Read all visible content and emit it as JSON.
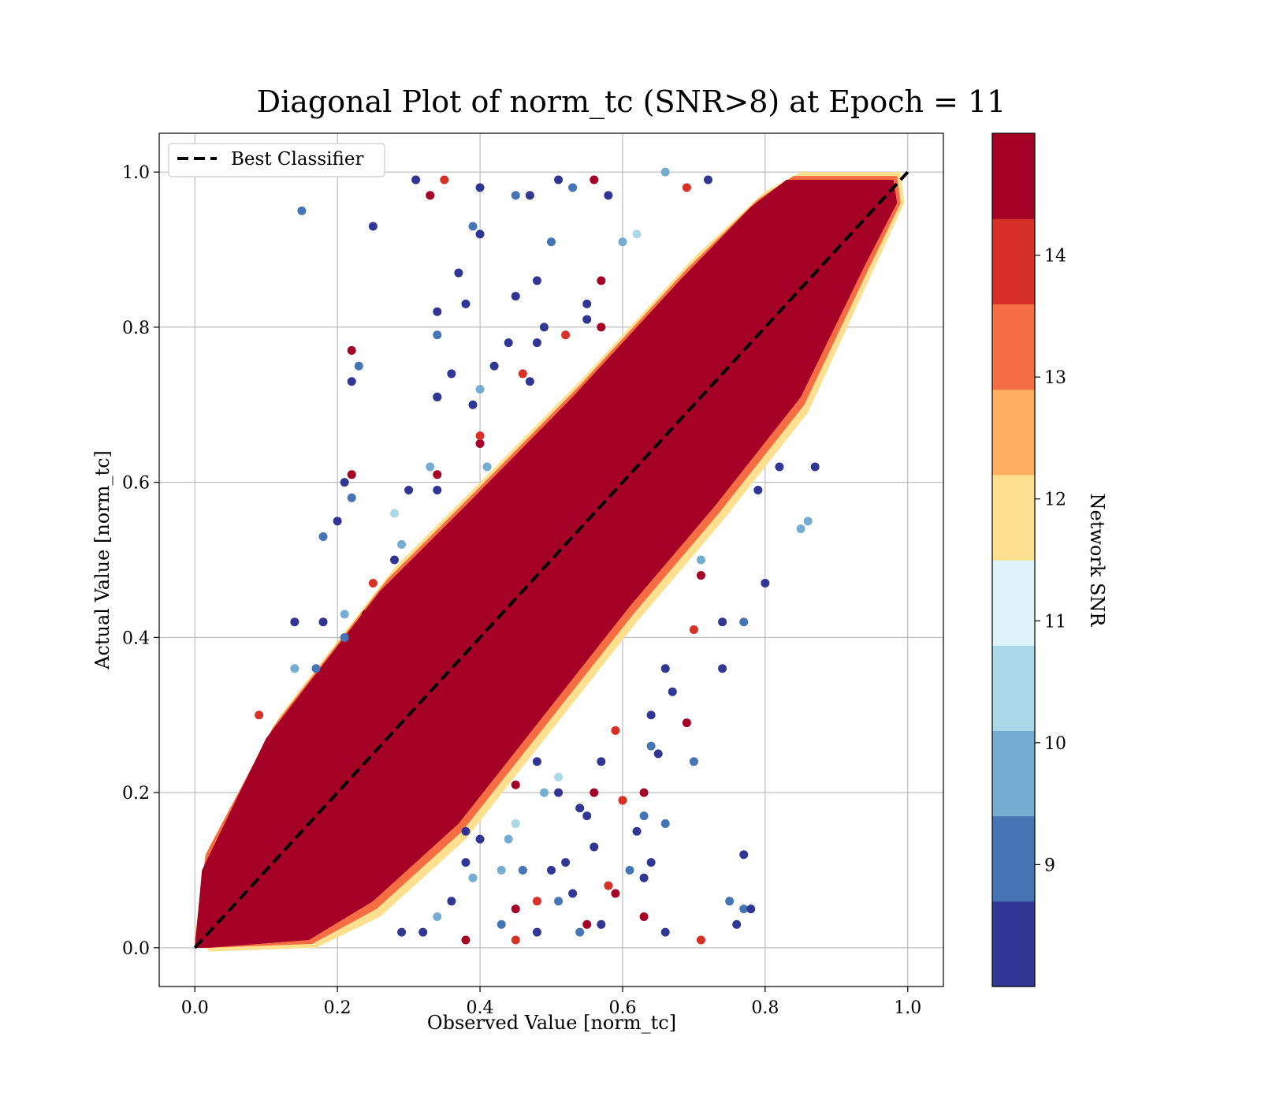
{
  "chart_data": {
    "type": "scatter",
    "title": "Diagonal Plot of norm_tc (SNR>8) at Epoch = 11",
    "xlabel": "Observed Value [norm_tc]",
    "ylabel": "Actual Value [norm_tc]",
    "xlim": [
      -0.05,
      1.05
    ],
    "ylim": [
      -0.05,
      1.05
    ],
    "x_ticks": [
      "0.0",
      "0.2",
      "0.4",
      "0.6",
      "0.8",
      "1.0"
    ],
    "y_ticks": [
      "0.0",
      "0.2",
      "0.4",
      "0.6",
      "0.8",
      "1.0"
    ],
    "grid": true,
    "legend": {
      "position": "upper left",
      "entries": [
        {
          "label": "Best Classifier",
          "style": "dashed",
          "color": "#000000"
        }
      ]
    },
    "reference_line": {
      "name": "Best Classifier",
      "x": [
        0,
        1
      ],
      "y": [
        0,
        1
      ]
    },
    "colorbar": {
      "label": "Network SNR",
      "vmin": 8,
      "vmax": 15,
      "ticks": [
        "9",
        "10",
        "11",
        "12",
        "13",
        "14"
      ],
      "colors": [
        "#313695",
        "#4575b4",
        "#74add1",
        "#abd9e9",
        "#e0f3f8",
        "#fee090",
        "#fdae61",
        "#f46d43",
        "#d73027",
        "#a50026"
      ]
    },
    "points": [
      [
        0.15,
        0.95
      ],
      [
        0.25,
        0.93
      ],
      [
        0.31,
        0.99
      ],
      [
        0.33,
        0.97
      ],
      [
        0.35,
        0.99
      ],
      [
        0.4,
        0.98
      ],
      [
        0.45,
        0.97
      ],
      [
        0.47,
        0.97
      ],
      [
        0.51,
        0.99
      ],
      [
        0.53,
        0.98
      ],
      [
        0.56,
        0.99
      ],
      [
        0.58,
        0.97
      ],
      [
        0.66,
        1.0
      ],
      [
        0.69,
        0.98
      ],
      [
        0.72,
        0.99
      ],
      [
        0.62,
        0.92
      ],
      [
        0.6,
        0.91
      ],
      [
        0.57,
        0.86
      ],
      [
        0.5,
        0.91
      ],
      [
        0.48,
        0.86
      ],
      [
        0.45,
        0.84
      ],
      [
        0.49,
        0.8
      ],
      [
        0.52,
        0.79
      ],
      [
        0.55,
        0.83
      ],
      [
        0.57,
        0.8
      ],
      [
        0.4,
        0.92
      ],
      [
        0.37,
        0.87
      ],
      [
        0.39,
        0.93
      ],
      [
        0.34,
        0.82
      ],
      [
        0.38,
        0.83
      ],
      [
        0.34,
        0.79
      ],
      [
        0.22,
        0.77
      ],
      [
        0.22,
        0.73
      ],
      [
        0.23,
        0.75
      ],
      [
        0.34,
        0.71
      ],
      [
        0.36,
        0.74
      ],
      [
        0.4,
        0.72
      ],
      [
        0.39,
        0.7
      ],
      [
        0.4,
        0.65
      ],
      [
        0.42,
        0.75
      ],
      [
        0.46,
        0.74
      ],
      [
        0.48,
        0.78
      ],
      [
        0.44,
        0.78
      ],
      [
        0.47,
        0.73
      ],
      [
        0.33,
        0.62
      ],
      [
        0.34,
        0.61
      ],
      [
        0.3,
        0.59
      ],
      [
        0.34,
        0.59
      ],
      [
        0.41,
        0.62
      ],
      [
        0.4,
        0.66
      ],
      [
        0.21,
        0.6
      ],
      [
        0.22,
        0.58
      ],
      [
        0.22,
        0.61
      ],
      [
        0.2,
        0.55
      ],
      [
        0.18,
        0.53
      ],
      [
        0.28,
        0.56
      ],
      [
        0.29,
        0.52
      ],
      [
        0.28,
        0.5
      ],
      [
        0.25,
        0.47
      ],
      [
        0.24,
        0.43
      ],
      [
        0.21,
        0.43
      ],
      [
        0.14,
        0.42
      ],
      [
        0.18,
        0.42
      ],
      [
        0.21,
        0.4
      ],
      [
        0.14,
        0.36
      ],
      [
        0.17,
        0.36
      ],
      [
        0.15,
        0.32
      ],
      [
        0.09,
        0.3
      ],
      [
        0.85,
        0.54
      ],
      [
        0.87,
        0.62
      ],
      [
        0.82,
        0.62
      ],
      [
        0.79,
        0.59
      ],
      [
        0.71,
        0.5
      ],
      [
        0.71,
        0.48
      ],
      [
        0.74,
        0.42
      ],
      [
        0.77,
        0.42
      ],
      [
        0.7,
        0.41
      ],
      [
        0.74,
        0.36
      ],
      [
        0.66,
        0.36
      ],
      [
        0.67,
        0.33
      ],
      [
        0.69,
        0.29
      ],
      [
        0.7,
        0.24
      ],
      [
        0.64,
        0.3
      ],
      [
        0.65,
        0.25
      ],
      [
        0.64,
        0.26
      ],
      [
        0.59,
        0.28
      ],
      [
        0.57,
        0.24
      ],
      [
        0.56,
        0.2
      ],
      [
        0.55,
        0.17
      ],
      [
        0.54,
        0.18
      ],
      [
        0.51,
        0.22
      ],
      [
        0.51,
        0.2
      ],
      [
        0.49,
        0.2
      ],
      [
        0.48,
        0.24
      ],
      [
        0.45,
        0.21
      ],
      [
        0.45,
        0.16
      ],
      [
        0.44,
        0.14
      ],
      [
        0.4,
        0.14
      ],
      [
        0.38,
        0.15
      ],
      [
        0.38,
        0.11
      ],
      [
        0.43,
        0.1
      ],
      [
        0.45,
        0.05
      ],
      [
        0.46,
        0.1
      ],
      [
        0.48,
        0.06
      ],
      [
        0.5,
        0.1
      ],
      [
        0.51,
        0.06
      ],
      [
        0.52,
        0.11
      ],
      [
        0.53,
        0.07
      ],
      [
        0.55,
        0.03
      ],
      [
        0.56,
        0.13
      ],
      [
        0.57,
        0.03
      ],
      [
        0.54,
        0.02
      ],
      [
        0.45,
        0.01
      ],
      [
        0.48,
        0.02
      ],
      [
        0.43,
        0.03
      ],
      [
        0.38,
        0.01
      ],
      [
        0.34,
        0.04
      ],
      [
        0.29,
        0.02
      ],
      [
        0.32,
        0.02
      ],
      [
        0.36,
        0.06
      ],
      [
        0.39,
        0.09
      ],
      [
        0.6,
        0.19
      ],
      [
        0.63,
        0.2
      ],
      [
        0.63,
        0.17
      ],
      [
        0.62,
        0.15
      ],
      [
        0.64,
        0.11
      ],
      [
        0.66,
        0.16
      ],
      [
        0.63,
        0.09
      ],
      [
        0.66,
        0.02
      ],
      [
        0.63,
        0.04
      ],
      [
        0.71,
        0.01
      ],
      [
        0.76,
        0.03
      ],
      [
        0.77,
        0.05
      ],
      [
        0.78,
        0.05
      ],
      [
        0.77,
        0.12
      ],
      [
        0.75,
        0.06
      ],
      [
        0.59,
        0.07
      ],
      [
        0.34,
        0.71
      ],
      [
        0.61,
        0.1
      ],
      [
        0.58,
        0.08
      ],
      [
        0.86,
        0.55
      ],
      [
        0.8,
        0.47
      ],
      [
        0.55,
        0.81
      ]
    ]
  }
}
